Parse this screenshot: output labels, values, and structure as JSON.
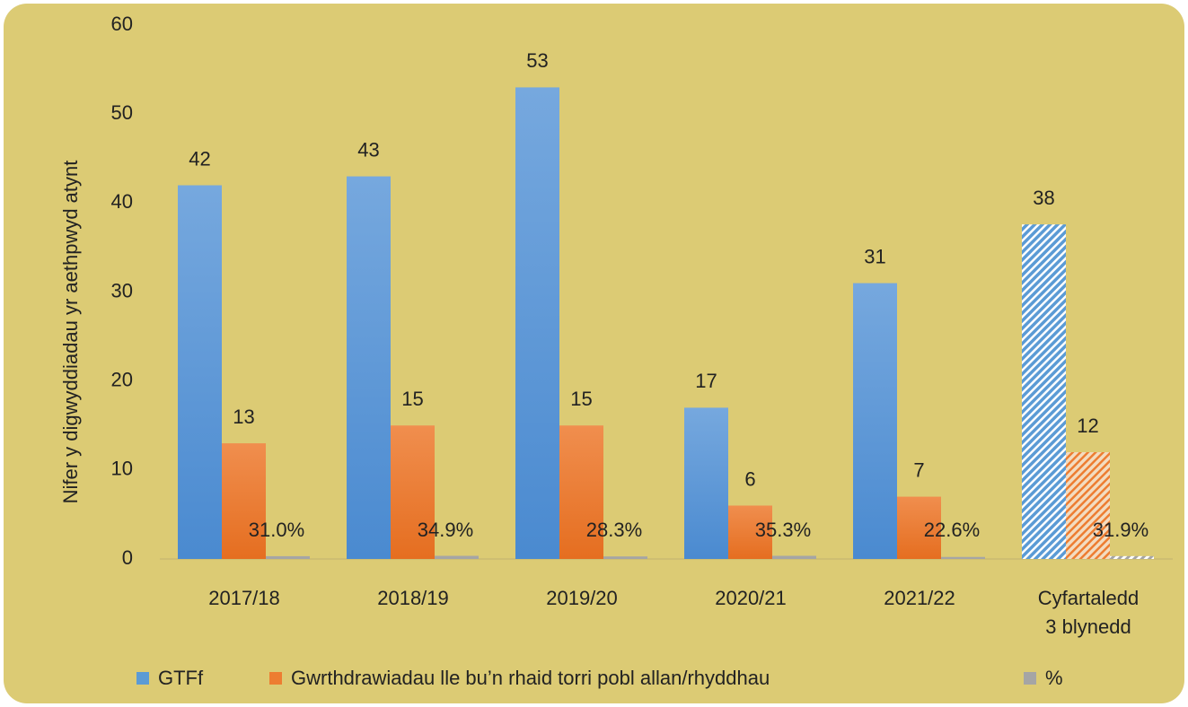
{
  "chart_data": {
    "type": "bar",
    "y_axis_label": "Nifer y digwyddiadau yr aethpwyd atynt",
    "categories": [
      "2017/18",
      "2018/19",
      "2019/20",
      "2020/21",
      "2021/22",
      "Cyfartaledd\n3 blynedd"
    ],
    "series": [
      {
        "name": "GTFf",
        "color": "#5b9bd5",
        "values": [
          42,
          43,
          53,
          17,
          31,
          37.6
        ],
        "value_labels": [
          "42",
          "43",
          "53",
          "17",
          "31",
          "38"
        ]
      },
      {
        "name": "Gwrthdrawiadau lle bu’n rhaid torri pobl allan/rhyddhau",
        "color": "#ed7d31",
        "values": [
          13,
          15,
          15,
          6,
          7,
          12
        ],
        "value_labels": [
          "13",
          "15",
          "15",
          "6",
          "7",
          "12"
        ]
      },
      {
        "name": "%",
        "color": "#a5a5a5",
        "values": [
          0.31,
          0.349,
          0.283,
          0.353,
          0.226,
          0.319
        ],
        "value_labels": [
          "31.0%",
          "34.9%",
          "28.3%",
          "35.3%",
          "22.6%",
          "31.9%"
        ]
      }
    ],
    "hatched": [
      false,
      false,
      false,
      false,
      false,
      true
    ],
    "ylim": [
      0,
      60
    ],
    "yticks": [
      0,
      10,
      20,
      30,
      40,
      50,
      60
    ],
    "grid": false,
    "legend": "bottom"
  }
}
